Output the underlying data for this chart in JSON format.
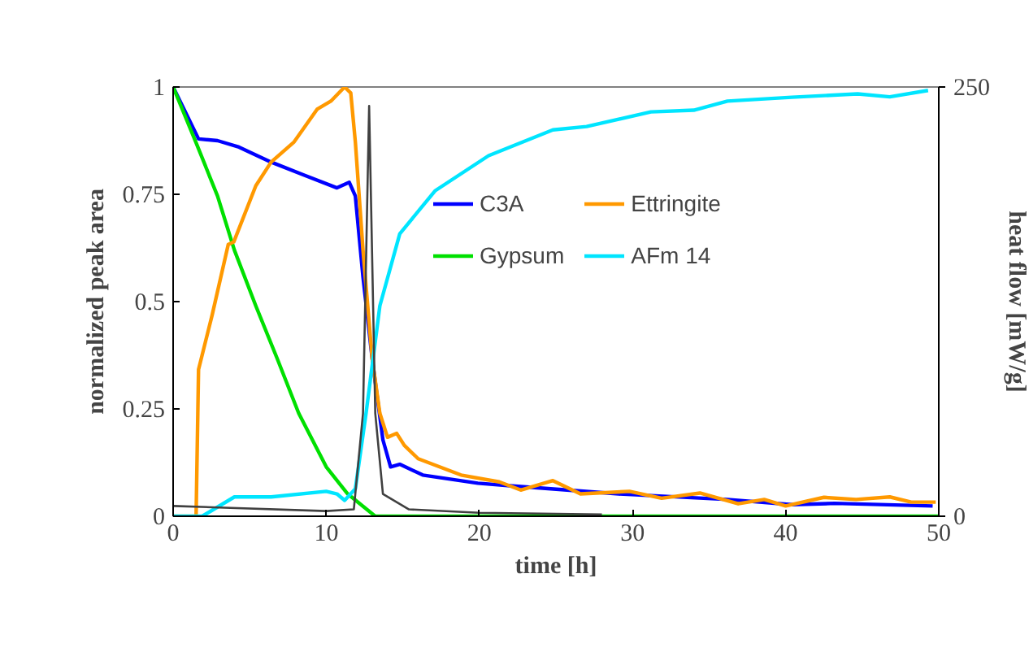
{
  "chart_data": {
    "type": "line",
    "xlabel": "time [h]",
    "ylabel": "normalized peak area",
    "y2label": "heat flow [mW/g]",
    "xlim": [
      0,
      50
    ],
    "xticks": [
      0,
      10,
      20,
      30,
      40,
      50
    ],
    "ylim": [
      0,
      1
    ],
    "yticks": [
      {
        "value": 0,
        "label": "0"
      },
      {
        "value": 0.25,
        "label": "0.25"
      },
      {
        "value": 0.5,
        "label": "0.5"
      },
      {
        "value": 0.75,
        "label": "0.75"
      },
      {
        "value": 1,
        "label": "1"
      }
    ],
    "y2lim": [
      0,
      250
    ],
    "y2ticks": [
      0,
      250
    ],
    "grid": false,
    "legend": "top",
    "marker": "none",
    "line_style": "solid",
    "series": [
      {
        "name": "C3A",
        "color": "#0000ff",
        "x": [
          0,
          1.66,
          2.9,
          4.3,
          6.4,
          8.6,
          10.7,
          11.5,
          11.9,
          12.4,
          13.0,
          13.7,
          14.2,
          14.8,
          16.3,
          19.9,
          22.0,
          29.1,
          36.2,
          40.4,
          43.2,
          49.6
        ],
        "values": [
          1,
          0.879,
          0.875,
          0.86,
          0.825,
          0.794,
          0.765,
          0.778,
          0.746,
          0.557,
          0.367,
          0.178,
          0.115,
          0.121,
          0.096,
          0.077,
          0.071,
          0.052,
          0.039,
          0.027,
          0.03,
          0.024
        ]
      },
      {
        "name": "Gypsum",
        "color": "#00e000",
        "x": [
          0,
          1.5,
          2.9,
          4.0,
          5.4,
          6.8,
          8.2,
          10.0,
          11.4,
          13.2,
          20,
          50
        ],
        "values": [
          1,
          0.87,
          0.746,
          0.62,
          0.49,
          0.367,
          0.24,
          0.115,
          0.052,
          0,
          0,
          0
        ]
      },
      {
        "name": "Ettringite",
        "color": "#ff9900",
        "x": [
          0,
          1.5,
          1.66,
          2.55,
          3.6,
          3.96,
          5.4,
          6.4,
          7.9,
          9.4,
          10.3,
          11.2,
          11.6,
          11.9,
          12.4,
          13.0,
          13.5,
          14.0,
          14.6,
          15.1,
          16.0,
          18.8,
          21.3,
          22.7,
          24.8,
          26.6,
          29.8,
          31.9,
          34.4,
          36.9,
          38.6,
          40.0,
          42.5,
          44.6,
          46.8,
          48.2,
          49.8
        ],
        "values": [
          0,
          0,
          0.342,
          0.469,
          0.633,
          0.639,
          0.77,
          0.825,
          0.872,
          0.948,
          0.967,
          1.0,
          0.986,
          0.872,
          0.62,
          0.367,
          0.24,
          0.184,
          0.193,
          0.165,
          0.134,
          0.096,
          0.08,
          0.061,
          0.083,
          0.052,
          0.058,
          0.042,
          0.054,
          0.029,
          0.039,
          0.024,
          0.044,
          0.039,
          0.045,
          0.033,
          0.033
        ]
      },
      {
        "name": "AFm 14",
        "color": "#00e5ff",
        "x": [
          0,
          1.9,
          4.0,
          6.4,
          10.0,
          10.7,
          11.2,
          11.9,
          12.6,
          13.5,
          14.8,
          17.1,
          20.6,
          24.8,
          27.0,
          31.2,
          34.0,
          36.2,
          40.4,
          44.7,
          46.8,
          49.3
        ],
        "values": [
          0,
          0,
          0.045,
          0.045,
          0.058,
          0.052,
          0.037,
          0.064,
          0.24,
          0.49,
          0.658,
          0.758,
          0.84,
          0.9,
          0.908,
          0.942,
          0.946,
          0.967,
          0.976,
          0.984,
          0.977,
          0.992
        ]
      },
      {
        "color": "#404040",
        "axis": "y2",
        "x": [
          0,
          10,
          11.8,
          12.4,
          12.8,
          13.2,
          13.7,
          15.4,
          20,
          28
        ],
        "values": [
          6,
          3,
          4,
          60,
          239,
          60,
          13,
          4,
          2,
          1
        ]
      }
    ]
  }
}
